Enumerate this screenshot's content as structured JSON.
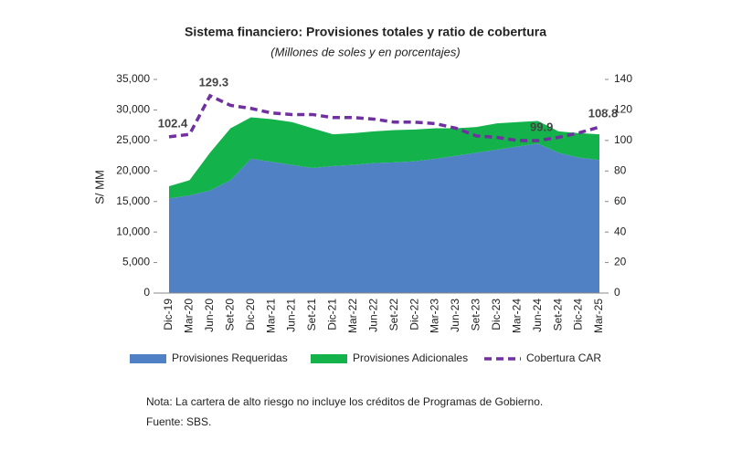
{
  "chart_data": {
    "type": "stacked_area_line",
    "title": "Sistema financiero: Provisiones totales y ratio de cobertura",
    "subtitle": "(Millones de soles y en porcentajes)",
    "ylabel": "S/ MM",
    "categories": [
      "Dic-19",
      "Mar-20",
      "Jun-20",
      "Set-20",
      "Dic-20",
      "Mar-21",
      "Jun-21",
      "Set-21",
      "Dic-21",
      "Mar-22",
      "Jun-22",
      "Set-22",
      "Dic-22",
      "Mar-23",
      "Jun-23",
      "Set-23",
      "Dic-23",
      "Mar-24",
      "Jun-24",
      "Set-24",
      "Dic-24",
      "Mar-25"
    ],
    "series": [
      {
        "name": "Provisiones Requeridas",
        "color": "#4f81c4",
        "kind": "area",
        "values": [
          15500,
          16000,
          16800,
          18500,
          22000,
          21500,
          21000,
          20500,
          20800,
          21000,
          21300,
          21400,
          21600,
          22000,
          22500,
          23000,
          23500,
          24000,
          24500,
          23000,
          22200,
          21800
        ]
      },
      {
        "name": "Provisiones Adicionales",
        "color": "#13b24b",
        "kind": "area",
        "values": [
          2000,
          2500,
          6200,
          8500,
          6800,
          7000,
          7000,
          6500,
          5200,
          5200,
          5200,
          5300,
          5200,
          5000,
          4500,
          4200,
          4300,
          4000,
          3700,
          3500,
          4000,
          4200
        ]
      },
      {
        "name": "Cobertura CAR",
        "color": "#7030a0",
        "kind": "line",
        "axis": "y2",
        "values": [
          102.4,
          104,
          129.3,
          123,
          121,
          118,
          117,
          117,
          115,
          115,
          114,
          112,
          112,
          111,
          108,
          103,
          102,
          100,
          99.9,
          102,
          105,
          108.8
        ],
        "value_labels": [
          "102.4",
          null,
          "129.3",
          null,
          null,
          null,
          null,
          null,
          null,
          null,
          null,
          null,
          null,
          null,
          null,
          null,
          null,
          null,
          "99.9",
          null,
          null,
          "108.8"
        ]
      }
    ],
    "ylim": [
      0,
      35000
    ],
    "yticks": [
      0,
      {
        "value": 5000,
        "label": "5,000"
      },
      {
        "value": 10000,
        "label": "10,000"
      },
      {
        "value": 15000,
        "label": "15,000"
      },
      {
        "value": 20000,
        "label": "20,000"
      },
      {
        "value": 25000,
        "label": "25,000"
      },
      {
        "value": 30000,
        "label": "30,000"
      },
      {
        "value": 35000,
        "label": "35,000"
      }
    ],
    "y2lim": [
      0,
      140
    ],
    "y2ticks": [
      0,
      20,
      40,
      60,
      80,
      100,
      120,
      140
    ],
    "legend": "bottom",
    "notes": [
      "Nota: La cartera de alto riesgo no incluye los créditos de Programas de Gobierno.",
      "Fuente: SBS."
    ]
  }
}
